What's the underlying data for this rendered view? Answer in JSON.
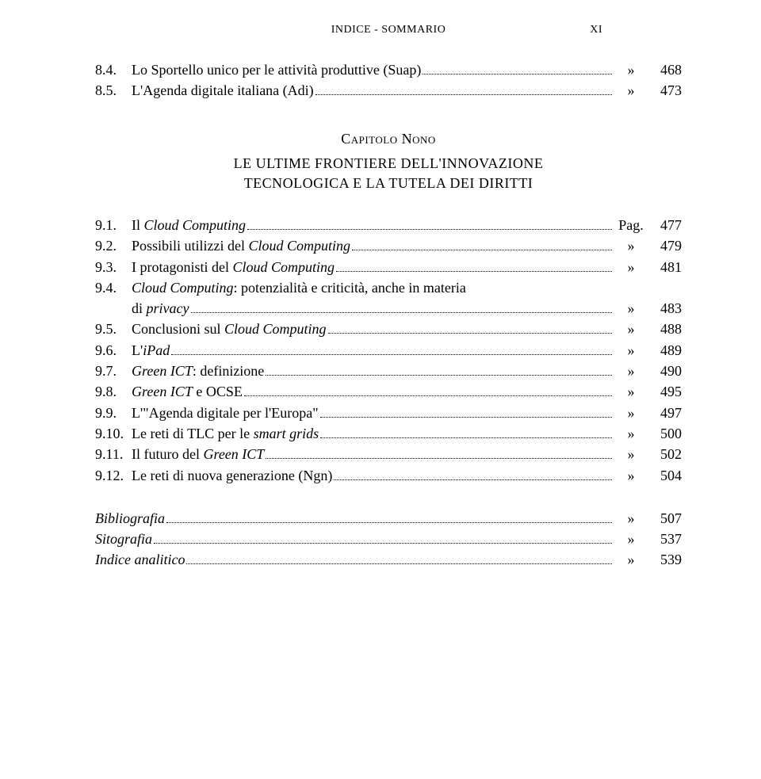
{
  "header": {
    "title": "INDICE - SOMMARIO",
    "page_marker": "XI"
  },
  "top_entries": [
    {
      "num": "8.4.",
      "text": "Lo Sportello unico per le attività produttive (Suap)",
      "sym": "»",
      "page": "468",
      "italic_terms": ""
    },
    {
      "num": "8.5.",
      "text": "L'Agenda digitale italiana (Adi)",
      "sym": "»",
      "page": "473",
      "italic_terms": ""
    }
  ],
  "chapter": {
    "label": "Capitolo Nono",
    "line1": "LE ULTIME FRONTIERE DELL'INNOVAZIONE",
    "line2": "TECNOLOGICA E LA TUTELA DEI DIRITTI"
  },
  "entries": {
    "e91": {
      "num": "9.1.",
      "prefix": "Il ",
      "italic": "Cloud Computing",
      "suffix": "",
      "sym": "Pag.",
      "page": "477"
    },
    "e92": {
      "num": "9.2.",
      "prefix": "Possibili utilizzi del ",
      "italic": "Cloud Computing",
      "suffix": "",
      "sym": "»",
      "page": "479"
    },
    "e93": {
      "num": "9.3.",
      "prefix": "I protagonisti del ",
      "italic": "Cloud Computing",
      "suffix": "",
      "sym": "»",
      "page": "481"
    },
    "e94a": {
      "num": "9.4.",
      "line1_italic": "Cloud Computing",
      "line1_suffix": ": potenzialità e criticità, anche in materia",
      "line2_prefix": "di ",
      "line2_italic": "privacy",
      "sym": "»",
      "page": "483"
    },
    "e95": {
      "num": "9.5.",
      "prefix": "Conclusioni sul ",
      "italic": "Cloud Computing",
      "suffix": "",
      "sym": "»",
      "page": "488"
    },
    "e96": {
      "num": "9.6.",
      "prefix": "L'",
      "italic": "iPad",
      "suffix": "",
      "sym": "»",
      "page": "489"
    },
    "e97": {
      "num": "9.7.",
      "italic": "Green ICT",
      "suffix": ": definizione",
      "prefix": "",
      "sym": "»",
      "page": "490"
    },
    "e98": {
      "num": "9.8.",
      "italic": "Green ICT",
      "suffix": " e OCSE",
      "prefix": "",
      "sym": "»",
      "page": "495"
    },
    "e99": {
      "num": "9.9.",
      "prefix": "L'\"Agenda digitale per l'Europa\"",
      "italic": "",
      "suffix": "",
      "sym": "»",
      "page": "497"
    },
    "e910": {
      "num": "9.10.",
      "prefix": "Le reti di TLC per le ",
      "italic": "smart grids",
      "suffix": "",
      "sym": "»",
      "page": "500"
    },
    "e911": {
      "num": "9.11.",
      "prefix": "Il futuro del ",
      "italic": "Green ICT",
      "suffix": "",
      "sym": "»",
      "page": "502"
    },
    "e912": {
      "num": "9.12.",
      "prefix": "Le reti di nuova generazione (Ngn)",
      "italic": "",
      "suffix": "",
      "sym": "»",
      "page": "504"
    }
  },
  "bottom": [
    {
      "label": "Bibliografia",
      "sym": "»",
      "page": "507"
    },
    {
      "label": "Sitografia",
      "sym": "»",
      "page": "537"
    },
    {
      "label": "Indice analitico",
      "sym": "»",
      "page": "539"
    }
  ]
}
